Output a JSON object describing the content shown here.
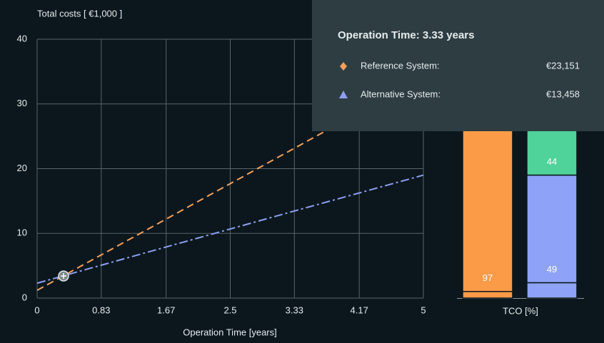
{
  "chart_data": [
    {
      "type": "line",
      "title": "Total costs [ €1,000 ]",
      "xlabel": "Operation Time [years]",
      "x": [
        0,
        3.33,
        5
      ],
      "xlim": [
        0,
        5
      ],
      "xticks": [
        0,
        0.83,
        1.67,
        2.5,
        3.33,
        4.17,
        5
      ],
      "ylim": [
        0,
        40
      ],
      "yticks": [
        0,
        10,
        20,
        30,
        40
      ],
      "grid": true,
      "series": [
        {
          "name": "Reference System:",
          "color": "#f5a05a",
          "style": "dashed",
          "marker": "diamond",
          "values": [
            1.2,
            23.151,
            34.2
          ],
          "value_labels": [
            null,
            "€23,151",
            null
          ]
        },
        {
          "name": "Alternative System:",
          "color": "#8d9ff2",
          "style": "dashdot",
          "marker": "triangle",
          "values": [
            2.3,
            13.458,
            19.0
          ],
          "value_labels": [
            null,
            "€13,458",
            null
          ]
        }
      ],
      "tooltip_title": "Operation Time: 3.33 years",
      "tooltip_index": 1
    },
    {
      "type": "bar",
      "stacked": true,
      "xlabel": "TCO [%]",
      "categories": [
        null,
        null
      ],
      "ylim": [
        0,
        100
      ],
      "series": [
        {
          "colors": [
            "#fb9b47",
            "#8ea3f7"
          ],
          "values": [
            3,
            7
          ],
          "show_labels": false
        },
        {
          "colors": [
            "#fb9b47",
            "#8ea3f7"
          ],
          "values": [
            97,
            49
          ],
          "show_labels": true
        },
        {
          "colors": [
            null,
            "#4fd39a"
          ],
          "values": [
            null,
            44
          ],
          "show_labels": true
        }
      ]
    }
  ]
}
